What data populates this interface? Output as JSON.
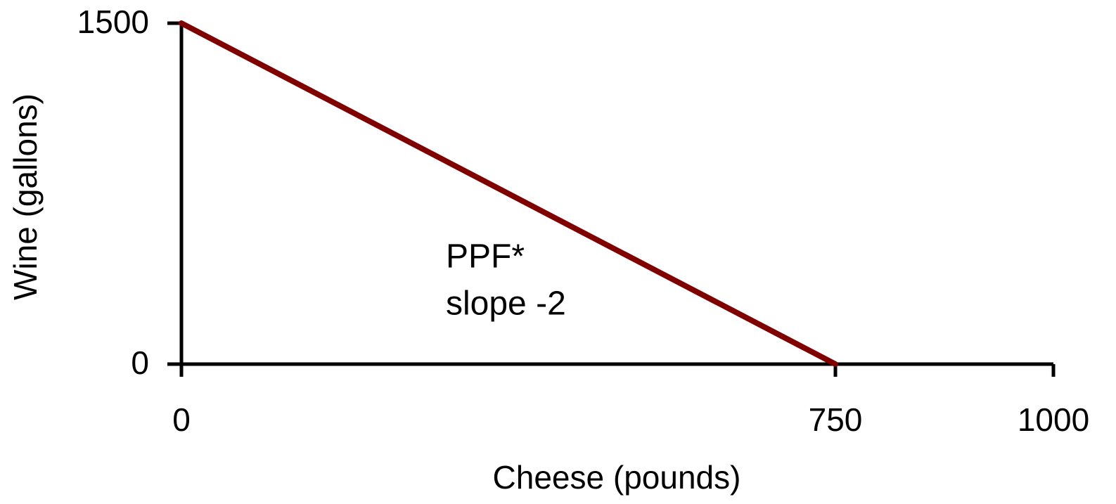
{
  "chart_data": {
    "type": "line",
    "x_label": "Cheese (pounds)",
    "y_label": "Wine (gallons)",
    "annotations": [
      "PPF*",
      "slope -2"
    ],
    "x": [
      0,
      750
    ],
    "series": [
      {
        "name": "PPF*",
        "color": "#800000",
        "values": [
          1500,
          0
        ]
      }
    ],
    "xlim": [
      0,
      1000
    ],
    "ylim": [
      0,
      1500
    ],
    "xticks": [
      0,
      750,
      1000
    ],
    "yticks": [
      0,
      1500
    ],
    "grid": false,
    "legend": false
  }
}
